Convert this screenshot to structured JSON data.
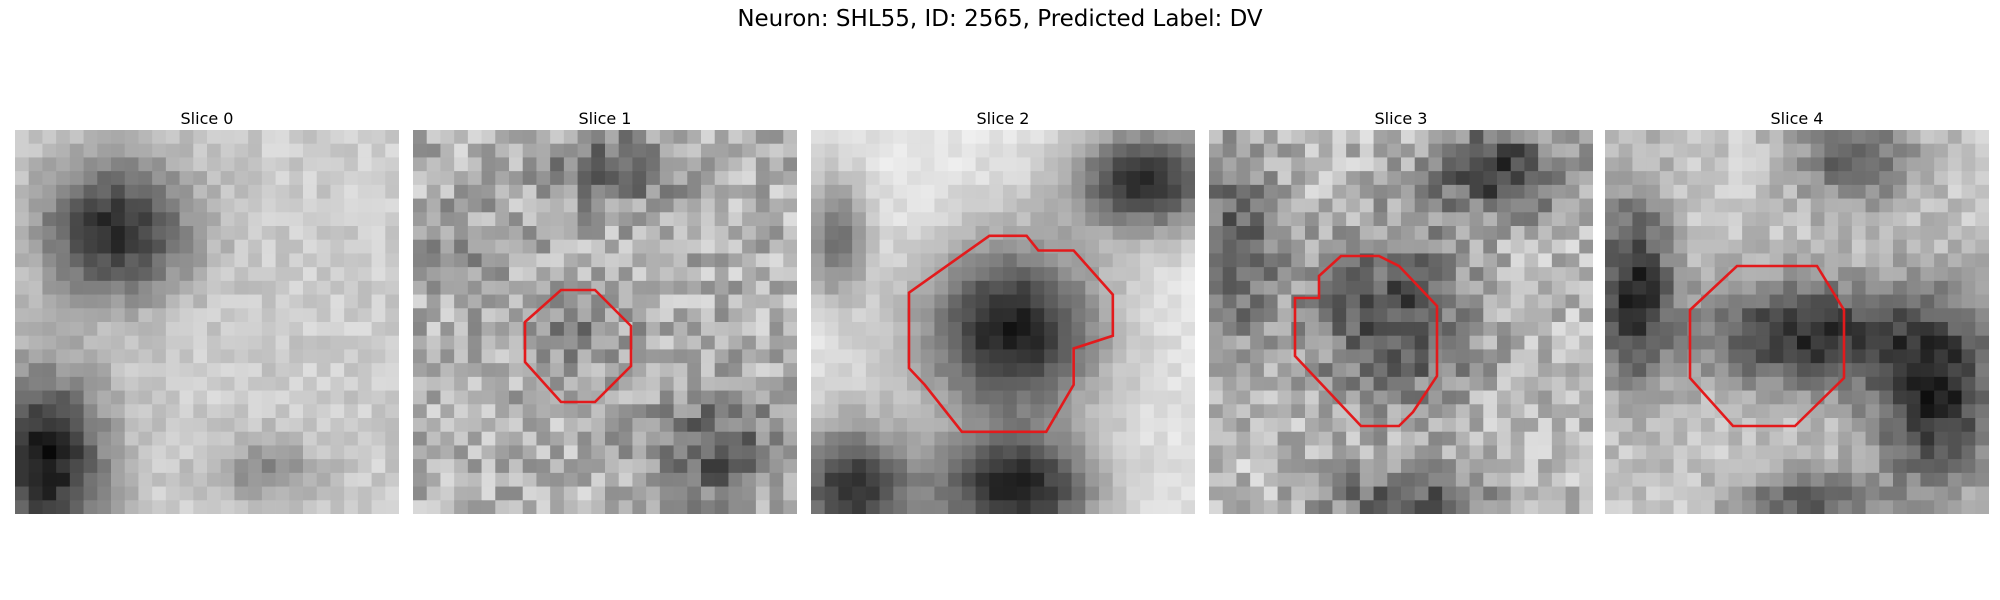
{
  "figure": {
    "title": "Neuron: SHL55, ID: 2565, Predicted Label: DV"
  },
  "panels": [
    {
      "title": "Slice 0",
      "has_outline": false,
      "outline_color": "#e31a1c"
    },
    {
      "title": "Slice 1",
      "has_outline": true,
      "outline_color": "#e31a1c"
    },
    {
      "title": "Slice 2",
      "has_outline": true,
      "outline_color": "#e31a1c"
    },
    {
      "title": "Slice 3",
      "has_outline": true,
      "outline_color": "#e31a1c"
    },
    {
      "title": "Slice 4",
      "has_outline": true,
      "outline_color": "#e31a1c"
    }
  ],
  "colormap": "gray"
}
